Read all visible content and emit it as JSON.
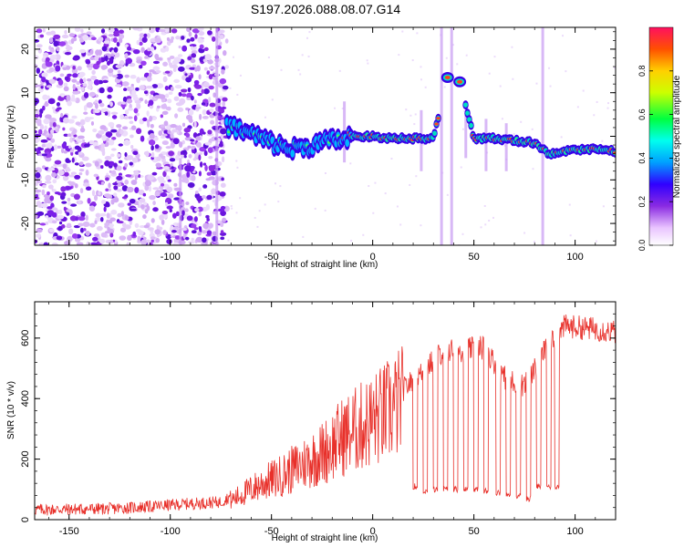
{
  "title": "S197.2026.088.08.07.G14",
  "chart_data": [
    {
      "type": "heatmap",
      "name": "spectrogram",
      "xlabel": "Height of straight line (km)",
      "ylabel": "Frequency (Hz)",
      "xlim": [
        -167,
        120
      ],
      "ylim": [
        -25,
        25
      ],
      "xticks": [
        -150,
        -100,
        -50,
        0,
        50,
        100
      ],
      "yticks": [
        -20,
        -10,
        0,
        10,
        20
      ],
      "colorbar": {
        "label": "Normalized spectral amplitude",
        "range": [
          0,
          1
        ],
        "ticks": [
          0.0,
          0.2,
          0.4,
          0.6,
          0.8
        ]
      },
      "trace": [
        {
          "x": -72,
          "freq": 2.5
        },
        {
          "x": -60,
          "freq": 0.5
        },
        {
          "x": -50,
          "freq": -1.5
        },
        {
          "x": -40,
          "freq": -3.0
        },
        {
          "x": -30,
          "freq": -2.0
        },
        {
          "x": -20,
          "freq": -1.0
        },
        {
          "x": -10,
          "freq": 0.0
        },
        {
          "x": 0,
          "freq": 0.0
        },
        {
          "x": 10,
          "freq": -0.5
        },
        {
          "x": 20,
          "freq": -0.5
        },
        {
          "x": 30,
          "freq": -0.5
        },
        {
          "x": 37,
          "freq": 13.5
        },
        {
          "x": 43,
          "freq": 12.5
        },
        {
          "x": 50,
          "freq": -0.5
        },
        {
          "x": 60,
          "freq": -0.5
        },
        {
          "x": 70,
          "freq": -1.0
        },
        {
          "x": 80,
          "freq": -1.5
        },
        {
          "x": 87,
          "freq": -4.0
        },
        {
          "x": 100,
          "freq": -3.0
        },
        {
          "x": 110,
          "freq": -3.0
        },
        {
          "x": 120,
          "freq": -3.5
        }
      ]
    },
    {
      "type": "line",
      "name": "snr",
      "xlabel": "Height of straight line (km)",
      "ylabel": "SNR (10 * v/v)",
      "xlim": [
        -167,
        120
      ],
      "ylim": [
        0,
        720
      ],
      "xticks": [
        -150,
        -100,
        -50,
        0,
        50,
        100
      ],
      "yticks": [
        0,
        200,
        400,
        600
      ],
      "color": "#e8302a",
      "envelope": [
        {
          "x": -167,
          "y": 25
        },
        {
          "x": -130,
          "y": 28
        },
        {
          "x": -110,
          "y": 35
        },
        {
          "x": -90,
          "y": 45
        },
        {
          "x": -75,
          "y": 50
        },
        {
          "x": -65,
          "y": 90
        },
        {
          "x": -55,
          "y": 130
        },
        {
          "x": -45,
          "y": 160
        },
        {
          "x": -35,
          "y": 200
        },
        {
          "x": -25,
          "y": 240
        },
        {
          "x": -15,
          "y": 300
        },
        {
          "x": -5,
          "y": 340
        },
        {
          "x": 5,
          "y": 380
        },
        {
          "x": 15,
          "y": 430
        },
        {
          "x": 25,
          "y": 490
        },
        {
          "x": 35,
          "y": 560
        },
        {
          "x": 45,
          "y": 560
        },
        {
          "x": 55,
          "y": 570
        },
        {
          "x": 65,
          "y": 470
        },
        {
          "x": 75,
          "y": 440
        },
        {
          "x": 85,
          "y": 560
        },
        {
          "x": 95,
          "y": 640
        },
        {
          "x": 110,
          "y": 630
        },
        {
          "x": 120,
          "y": 620
        }
      ],
      "dropouts": [
        {
          "x": 21,
          "y": 110
        },
        {
          "x": 26,
          "y": 95
        },
        {
          "x": 31,
          "y": 100
        },
        {
          "x": 36,
          "y": 100
        },
        {
          "x": 41,
          "y": 100
        },
        {
          "x": 46,
          "y": 100
        },
        {
          "x": 51,
          "y": 100
        },
        {
          "x": 56,
          "y": 95
        },
        {
          "x": 62,
          "y": 90
        },
        {
          "x": 67,
          "y": 80
        },
        {
          "x": 72,
          "y": 80
        },
        {
          "x": 77,
          "y": 70
        },
        {
          "x": 82,
          "y": 110
        },
        {
          "x": 87,
          "y": 110
        },
        {
          "x": 91,
          "y": 110
        }
      ]
    }
  ]
}
